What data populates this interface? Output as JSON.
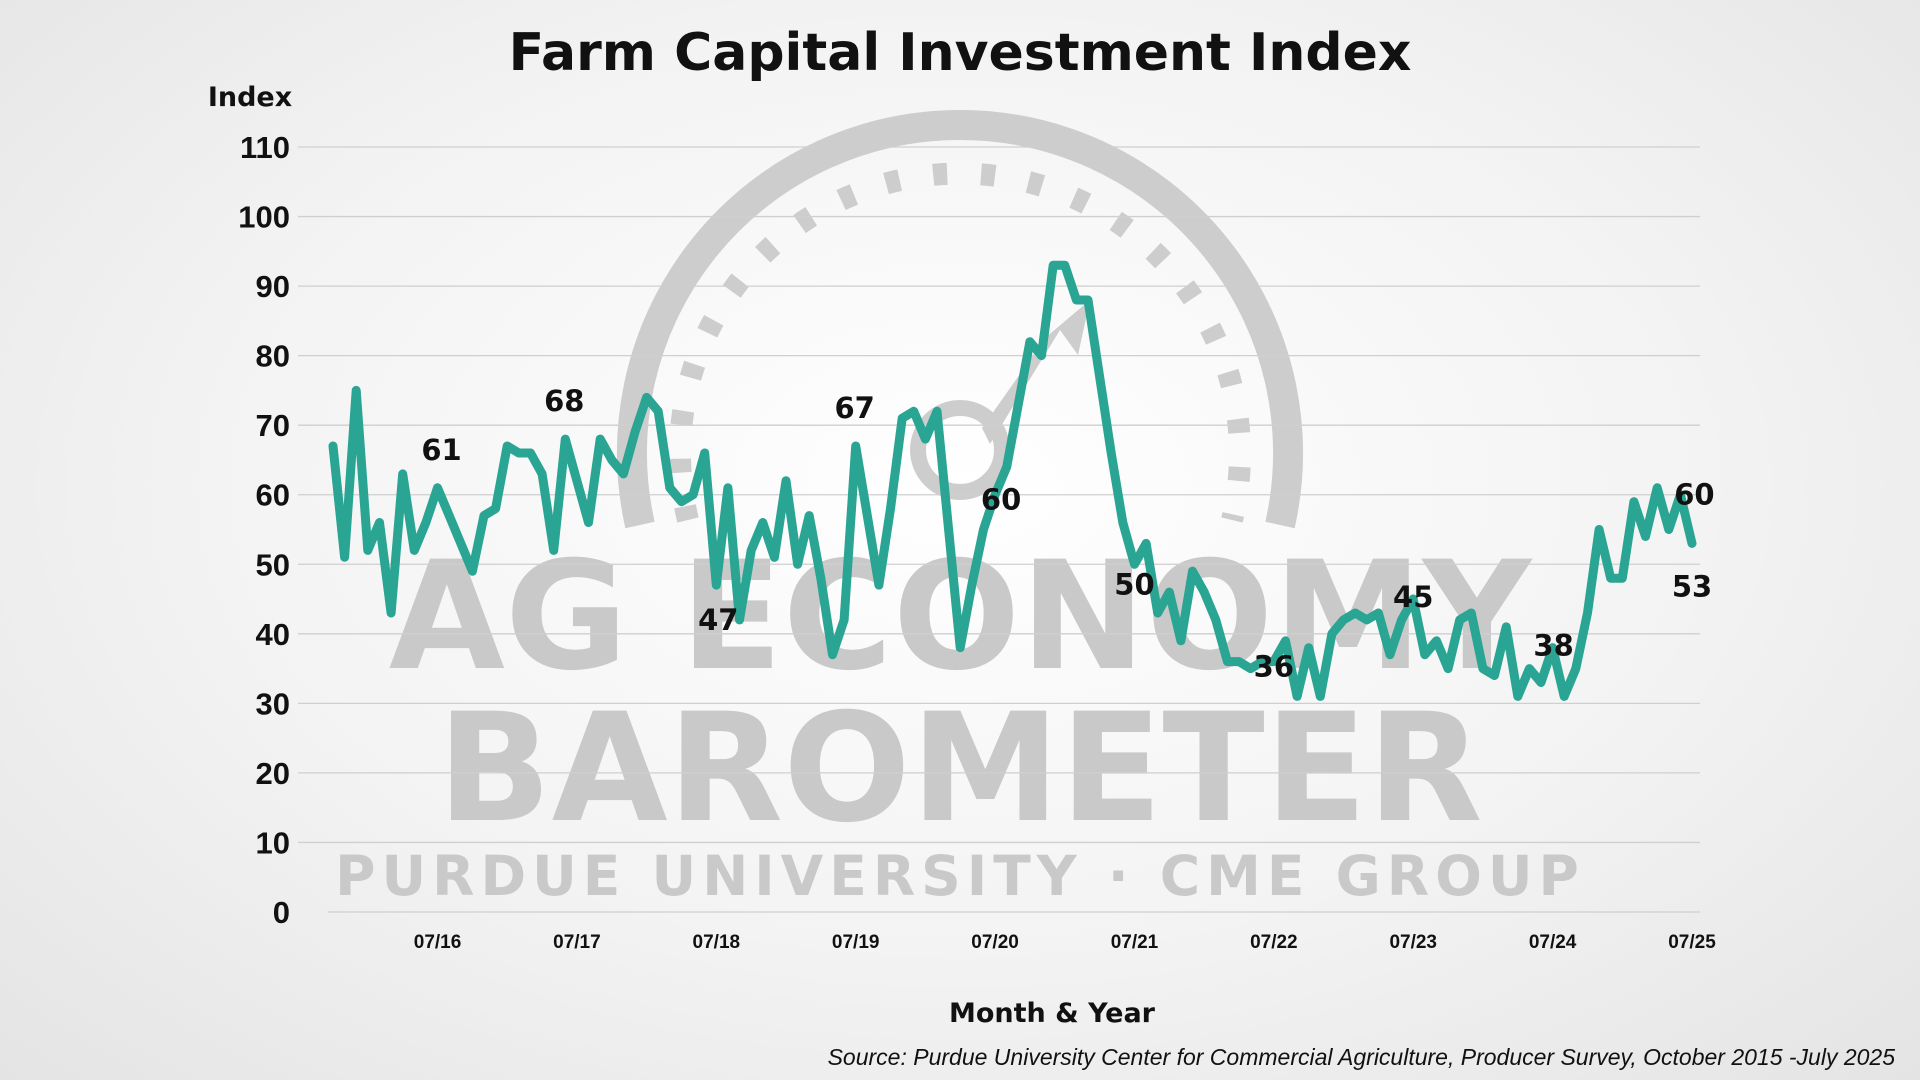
{
  "chart_data": {
    "type": "line",
    "title": "Farm Capital Investment Index",
    "ylabel": "Index",
    "xlabel": "Month & Year",
    "source": "Source: Purdue University Center for Commercial Agriculture, Producer Survey, October 2015 -July 2025",
    "ylim": [
      0,
      110
    ],
    "yticks": [
      0,
      10,
      20,
      30,
      40,
      50,
      60,
      70,
      80,
      90,
      100,
      110
    ],
    "grid": true,
    "line_color": "#2aa493",
    "x_tick_labels": [
      {
        "month": 9,
        "label": "07/16"
      },
      {
        "month": 21,
        "label": "07/17"
      },
      {
        "month": 33,
        "label": "07/18"
      },
      {
        "month": 45,
        "label": "07/19"
      },
      {
        "month": 57,
        "label": "07/20"
      },
      {
        "month": 69,
        "label": "07/21"
      },
      {
        "month": 81,
        "label": "07/22"
      },
      {
        "month": 93,
        "label": "07/23"
      },
      {
        "month": 105,
        "label": "07/24"
      },
      {
        "month": 117,
        "label": "07/25"
      }
    ],
    "series": [
      {
        "name": "Farm Capital Investment Index",
        "points": [
          [
            0,
            67
          ],
          [
            1,
            51
          ],
          [
            2,
            75
          ],
          [
            3,
            52
          ],
          [
            4,
            56
          ],
          [
            5,
            43
          ],
          [
            6,
            63
          ],
          [
            7,
            52
          ],
          [
            8,
            56
          ],
          [
            9,
            61
          ],
          [
            10,
            57
          ],
          [
            11,
            53
          ],
          [
            12,
            49
          ],
          [
            13,
            57
          ],
          [
            14,
            58
          ],
          [
            15,
            67
          ],
          [
            16,
            66
          ],
          [
            17,
            66
          ],
          [
            18,
            63
          ],
          [
            19,
            52
          ],
          [
            20,
            68
          ],
          [
            21,
            62
          ],
          [
            22,
            56
          ],
          [
            23,
            68
          ],
          [
            24,
            65
          ],
          [
            25,
            63
          ],
          [
            26,
            69
          ],
          [
            27,
            74
          ],
          [
            28,
            72
          ],
          [
            29,
            61
          ],
          [
            30,
            59
          ],
          [
            31,
            60
          ],
          [
            32,
            66
          ],
          [
            33,
            47
          ],
          [
            34,
            61
          ],
          [
            35,
            42
          ],
          [
            36,
            52
          ],
          [
            37,
            56
          ],
          [
            38,
            51
          ],
          [
            39,
            62
          ],
          [
            40,
            50
          ],
          [
            41,
            57
          ],
          [
            42,
            48
          ],
          [
            43,
            37
          ],
          [
            44,
            42
          ],
          [
            45,
            67
          ],
          [
            46,
            57
          ],
          [
            47,
            47
          ],
          [
            48,
            58
          ],
          [
            49,
            71
          ],
          [
            50,
            72
          ],
          [
            51,
            68
          ],
          [
            52,
            72
          ],
          [
            53,
            55
          ],
          [
            54,
            38
          ],
          [
            55,
            47
          ],
          [
            56,
            55
          ],
          [
            57,
            60
          ],
          [
            58,
            64
          ],
          [
            59,
            73
          ],
          [
            60,
            82
          ],
          [
            61,
            80
          ],
          [
            62,
            93
          ],
          [
            63,
            93
          ],
          [
            64,
            88
          ],
          [
            65,
            88
          ],
          [
            66,
            77
          ],
          [
            67,
            66
          ],
          [
            68,
            56
          ],
          [
            69,
            50
          ],
          [
            70,
            53
          ],
          [
            71,
            43
          ],
          [
            72,
            46
          ],
          [
            73,
            39
          ],
          [
            74,
            49
          ],
          [
            75,
            46
          ],
          [
            76,
            42
          ],
          [
            77,
            36
          ],
          [
            78,
            36
          ],
          [
            79,
            35
          ],
          [
            80,
            36
          ],
          [
            81,
            36
          ],
          [
            82,
            39
          ],
          [
            83,
            31
          ],
          [
            84,
            38
          ],
          [
            85,
            31
          ],
          [
            86,
            40
          ],
          [
            87,
            42
          ],
          [
            88,
            43
          ],
          [
            89,
            42
          ],
          [
            90,
            43
          ],
          [
            91,
            37
          ],
          [
            92,
            42
          ],
          [
            93,
            45
          ],
          [
            94,
            37
          ],
          [
            95,
            39
          ],
          [
            96,
            35
          ],
          [
            97,
            42
          ],
          [
            98,
            43
          ],
          [
            99,
            35
          ],
          [
            100,
            34
          ],
          [
            101,
            41
          ],
          [
            102,
            31
          ],
          [
            103,
            35
          ],
          [
            104,
            33
          ],
          [
            105,
            38
          ],
          [
            106,
            31
          ],
          [
            107,
            35
          ],
          [
            108,
            43
          ],
          [
            109,
            55
          ],
          [
            110,
            48
          ],
          [
            111,
            48
          ],
          [
            112,
            59
          ],
          [
            113,
            54
          ],
          [
            114,
            61
          ],
          [
            115,
            55
          ],
          [
            116,
            60
          ],
          [
            117,
            53
          ]
        ]
      }
    ],
    "annotations": [
      {
        "month": 9,
        "value": 61,
        "text": "61"
      },
      {
        "month": 20,
        "value": 68,
        "text": "68"
      },
      {
        "month": 33,
        "value": 47,
        "text": "47"
      },
      {
        "month": 45,
        "value": 67,
        "text": "67"
      },
      {
        "month": 57,
        "value": 60,
        "text": "60"
      },
      {
        "month": 69,
        "value": 50,
        "text": "50"
      },
      {
        "month": 81,
        "value": 36,
        "text": "36"
      },
      {
        "month": 93,
        "value": 45,
        "text": "45"
      },
      {
        "month": 105,
        "value": 38,
        "text": "38"
      },
      {
        "month": 116,
        "value": 60,
        "text": "60"
      },
      {
        "month": 117,
        "value": 53,
        "text": "53"
      }
    ]
  },
  "watermark": {
    "line1": "AG ECONOMY",
    "line2": "BAROMETER",
    "line3": "PURDUE UNIVERSITY  ·  CME GROUP",
    "icon": "gauge-icon"
  }
}
